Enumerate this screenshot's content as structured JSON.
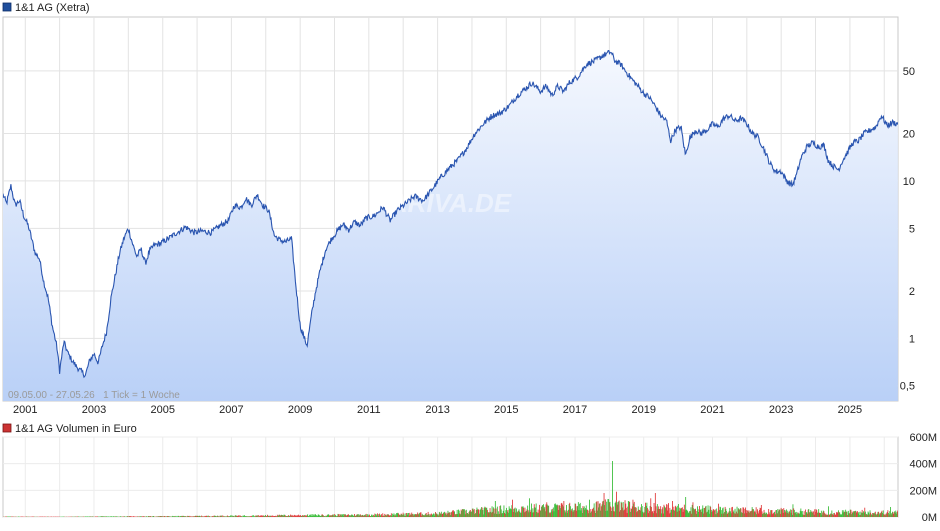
{
  "chart_data": [
    {
      "type": "line",
      "title": "1&1 AG (Xetra)",
      "y_scale": "log",
      "ylim": [
        0.4,
        110
      ],
      "y_ticks": [
        {
          "value": 0.5,
          "label": "0,5"
        },
        {
          "value": 1,
          "label": "1"
        },
        {
          "value": 2,
          "label": "2"
        },
        {
          "value": 5,
          "label": "5"
        },
        {
          "value": 10,
          "label": "10"
        },
        {
          "value": 20,
          "label": "20"
        },
        {
          "value": 50,
          "label": "50"
        }
      ],
      "x_range": [
        "2000-05-09",
        "2026-05-27"
      ],
      "x_ticks": [
        "2001",
        "2003",
        "2005",
        "2007",
        "2009",
        "2011",
        "2013",
        "2015",
        "2017",
        "2019",
        "2021",
        "2023",
        "2025"
      ],
      "footer_text": "09.05.00 - 27.05.26   1 Tick = 1 Woche",
      "watermark": "ARIVA.DE",
      "grid": true,
      "legend_color": "#1f4e9c",
      "line_color": "#2a55b0",
      "series": [
        {
          "name": "1&1 AG (Xetra)",
          "points": [
            [
              "2000-05-09",
              8.2
            ],
            [
              "2000-06-15",
              7.2
            ],
            [
              "2000-08-01",
              9.3
            ],
            [
              "2000-09-15",
              7.0
            ],
            [
              "2000-11-01",
              7.5
            ],
            [
              "2000-12-15",
              6.0
            ],
            [
              "2001-02-01",
              5.2
            ],
            [
              "2001-03-01",
              4.5
            ],
            [
              "2001-04-15",
              3.5
            ],
            [
              "2001-06-01",
              3.2
            ],
            [
              "2001-07-15",
              2.3
            ],
            [
              "2001-09-01",
              1.8
            ],
            [
              "2001-10-15",
              1.2
            ],
            [
              "2001-12-01",
              0.9
            ],
            [
              "2002-01-01",
              0.62
            ],
            [
              "2002-02-15",
              0.95
            ],
            [
              "2002-04-01",
              0.8
            ],
            [
              "2002-05-15",
              0.72
            ],
            [
              "2002-07-01",
              0.66
            ],
            [
              "2002-08-15",
              0.62
            ],
            [
              "2002-10-01",
              0.58
            ],
            [
              "2002-11-15",
              0.72
            ],
            [
              "2003-01-01",
              0.8
            ],
            [
              "2003-02-15",
              0.7
            ],
            [
              "2003-04-01",
              0.9
            ],
            [
              "2003-05-15",
              1.1
            ],
            [
              "2003-07-01",
              1.8
            ],
            [
              "2003-08-15",
              2.5
            ],
            [
              "2003-10-01",
              3.5
            ],
            [
              "2003-11-15",
              4.3
            ],
            [
              "2004-01-01",
              5.0
            ],
            [
              "2004-02-15",
              4.0
            ],
            [
              "2004-04-01",
              3.3
            ],
            [
              "2004-05-15",
              3.7
            ],
            [
              "2004-07-01",
              3.0
            ],
            [
              "2004-08-15",
              3.6
            ],
            [
              "2004-10-01",
              3.9
            ],
            [
              "2004-12-01",
              4.0
            ],
            [
              "2005-03-01",
              4.3
            ],
            [
              "2005-06-01",
              4.7
            ],
            [
              "2005-09-01",
              5.1
            ],
            [
              "2005-12-01",
              4.7
            ],
            [
              "2006-03-01",
              4.8
            ],
            [
              "2006-06-01",
              4.7
            ],
            [
              "2006-09-01",
              5.2
            ],
            [
              "2006-12-01",
              5.6
            ],
            [
              "2007-02-01",
              7.0
            ],
            [
              "2007-04-15",
              6.8
            ],
            [
              "2007-06-01",
              7.8
            ],
            [
              "2007-08-01",
              7.0
            ],
            [
              "2007-10-01",
              8.2
            ],
            [
              "2007-12-01",
              7.0
            ],
            [
              "2008-02-01",
              6.5
            ],
            [
              "2008-04-01",
              4.5
            ],
            [
              "2008-06-01",
              4.2
            ],
            [
              "2008-08-01",
              4.1
            ],
            [
              "2008-10-01",
              4.3
            ],
            [
              "2008-11-15",
              2.2
            ],
            [
              "2009-01-01",
              1.2
            ],
            [
              "2009-02-15",
              1.0
            ],
            [
              "2009-03-15",
              0.9
            ],
            [
              "2009-05-01",
              1.4
            ],
            [
              "2009-06-15",
              2.0
            ],
            [
              "2009-08-01",
              2.7
            ],
            [
              "2009-10-01",
              3.7
            ],
            [
              "2009-12-01",
              4.3
            ],
            [
              "2010-02-01",
              4.8
            ],
            [
              "2010-04-01",
              5.3
            ],
            [
              "2010-06-01",
              4.9
            ],
            [
              "2010-08-01",
              5.5
            ],
            [
              "2010-10-01",
              5.2
            ],
            [
              "2010-12-01",
              5.8
            ],
            [
              "2011-03-01",
              6.0
            ],
            [
              "2011-06-01",
              6.8
            ],
            [
              "2011-08-15",
              5.6
            ],
            [
              "2011-11-01",
              6.5
            ],
            [
              "2012-02-01",
              7.2
            ],
            [
              "2012-05-01",
              8.0
            ],
            [
              "2012-08-01",
              7.5
            ],
            [
              "2012-11-01",
              8.8
            ],
            [
              "2013-02-01",
              10.5
            ],
            [
              "2013-05-01",
              12.0
            ],
            [
              "2013-08-01",
              13.5
            ],
            [
              "2013-11-01",
              16.0
            ],
            [
              "2014-02-01",
              20.0
            ],
            [
              "2014-05-01",
              23.0
            ],
            [
              "2014-08-01",
              26.0
            ],
            [
              "2014-11-01",
              27.0
            ],
            [
              "2015-02-01",
              30.0
            ],
            [
              "2015-05-01",
              35.0
            ],
            [
              "2015-08-01",
              39.0
            ],
            [
              "2015-10-01",
              42.0
            ],
            [
              "2016-01-01",
              37.0
            ],
            [
              "2016-03-01",
              40.0
            ],
            [
              "2016-05-01",
              35.0
            ],
            [
              "2016-07-01",
              40.0
            ],
            [
              "2016-09-01",
              37.0
            ],
            [
              "2016-11-01",
              42.0
            ],
            [
              "2017-02-01",
              46.0
            ],
            [
              "2017-05-01",
              55.0
            ],
            [
              "2017-08-01",
              58.0
            ],
            [
              "2017-11-01",
              63.0
            ],
            [
              "2018-01-15",
              66.0
            ],
            [
              "2018-03-01",
              58.0
            ],
            [
              "2018-05-01",
              55.0
            ],
            [
              "2018-07-01",
              49.0
            ],
            [
              "2018-09-01",
              44.0
            ],
            [
              "2018-11-01",
              40.0
            ],
            [
              "2019-01-01",
              36.0
            ],
            [
              "2019-03-01",
              34.0
            ],
            [
              "2019-05-01",
              30.0
            ],
            [
              "2019-07-01",
              26.0
            ],
            [
              "2019-09-01",
              24.0
            ],
            [
              "2019-10-15",
              18.0
            ],
            [
              "2019-12-01",
              21.0
            ],
            [
              "2020-02-01",
              22.0
            ],
            [
              "2020-03-20",
              14.5
            ],
            [
              "2020-05-01",
              18.5
            ],
            [
              "2020-07-01",
              21.0
            ],
            [
              "2020-09-01",
              20.0
            ],
            [
              "2020-11-01",
              21.0
            ],
            [
              "2021-01-01",
              23.0
            ],
            [
              "2021-03-01",
              22.0
            ],
            [
              "2021-05-01",
              25.0
            ],
            [
              "2021-07-01",
              26.0
            ],
            [
              "2021-09-01",
              24.0
            ],
            [
              "2021-11-01",
              25.0
            ],
            [
              "2022-01-01",
              23.0
            ],
            [
              "2022-03-01",
              20.0
            ],
            [
              "2022-05-01",
              19.0
            ],
            [
              "2022-07-01",
              16.0
            ],
            [
              "2022-09-01",
              13.0
            ],
            [
              "2022-11-01",
              11.5
            ],
            [
              "2023-01-01",
              11.5
            ],
            [
              "2023-03-01",
              10.0
            ],
            [
              "2023-05-01",
              9.4
            ],
            [
              "2023-06-15",
              11.0
            ],
            [
              "2023-08-01",
              14.0
            ],
            [
              "2023-10-01",
              16.5
            ],
            [
              "2023-12-01",
              17.5
            ],
            [
              "2024-02-01",
              16.5
            ],
            [
              "2024-04-01",
              16.8
            ],
            [
              "2024-05-15",
              13.5
            ],
            [
              "2024-07-01",
              12.5
            ],
            [
              "2024-09-01",
              11.8
            ],
            [
              "2024-10-15",
              13.5
            ],
            [
              "2024-12-01",
              15.0
            ],
            [
              "2025-02-01",
              17.5
            ],
            [
              "2025-04-01",
              18.0
            ],
            [
              "2025-06-01",
              20.0
            ],
            [
              "2025-08-01",
              21.0
            ],
            [
              "2025-10-01",
              22.0
            ],
            [
              "2025-12-01",
              26.0
            ],
            [
              "2026-02-01",
              22.5
            ],
            [
              "2026-04-01",
              23.5
            ],
            [
              "2026-05-27",
              23.0
            ]
          ]
        }
      ]
    },
    {
      "type": "bar",
      "title": "1&1 AG Volumen in Euro",
      "ylim": [
        0,
        600
      ],
      "y_ticks": [
        {
          "value": 0,
          "label": "0M"
        },
        {
          "value": 200,
          "label": "200M"
        },
        {
          "value": 400,
          "label": "400M"
        },
        {
          "value": 600,
          "label": "600M"
        }
      ],
      "x_range": [
        "2000-05-09",
        "2026-05-27"
      ],
      "legend_color": "#cc3333",
      "up_color": "#3fbf3f",
      "down_color": "#e04040",
      "grid": true,
      "volume_profile": [
        [
          "2000-05-09",
          3
        ],
        [
          "2002-01-01",
          2
        ],
        [
          "2003-06-01",
          4
        ],
        [
          "2005-06-01",
          6
        ],
        [
          "2007-06-01",
          10
        ],
        [
          "2009-01-01",
          14
        ],
        [
          "2011-01-01",
          18
        ],
        [
          "2013-01-01",
          28
        ],
        [
          "2014-06-01",
          55
        ],
        [
          "2015-06-01",
          70
        ],
        [
          "2016-06-01",
          75
        ],
        [
          "2017-06-01",
          80
        ],
        [
          "2018-01-01",
          95
        ],
        [
          "2019-01-01",
          80
        ],
        [
          "2020-01-01",
          70
        ],
        [
          "2021-06-01",
          55
        ],
        [
          "2022-06-01",
          50
        ],
        [
          "2023-06-01",
          45
        ],
        [
          "2024-06-01",
          40
        ],
        [
          "2025-06-01",
          38
        ],
        [
          "2026-05-27",
          35
        ]
      ],
      "volume_spikes": [
        [
          "2014-09-01",
          120
        ],
        [
          "2015-03-01",
          130
        ],
        [
          "2015-09-01",
          140
        ],
        [
          "2016-03-01",
          110
        ],
        [
          "2016-09-01",
          120
        ],
        [
          "2017-06-01",
          130
        ],
        [
          "2017-11-01",
          180
        ],
        [
          "2018-02-01",
          420
        ],
        [
          "2018-03-15",
          190
        ],
        [
          "2018-09-01",
          130
        ],
        [
          "2019-03-15",
          140
        ],
        [
          "2019-05-01",
          180
        ],
        [
          "2019-11-01",
          120
        ],
        [
          "2020-03-20",
          150
        ],
        [
          "2020-06-01",
          110
        ],
        [
          "2021-03-01",
          100
        ],
        [
          "2022-06-01",
          90
        ],
        [
          "2023-05-01",
          95
        ],
        [
          "2024-05-15",
          80
        ],
        [
          "2025-06-01",
          70
        ],
        [
          "2026-03-01",
          75
        ]
      ]
    }
  ]
}
